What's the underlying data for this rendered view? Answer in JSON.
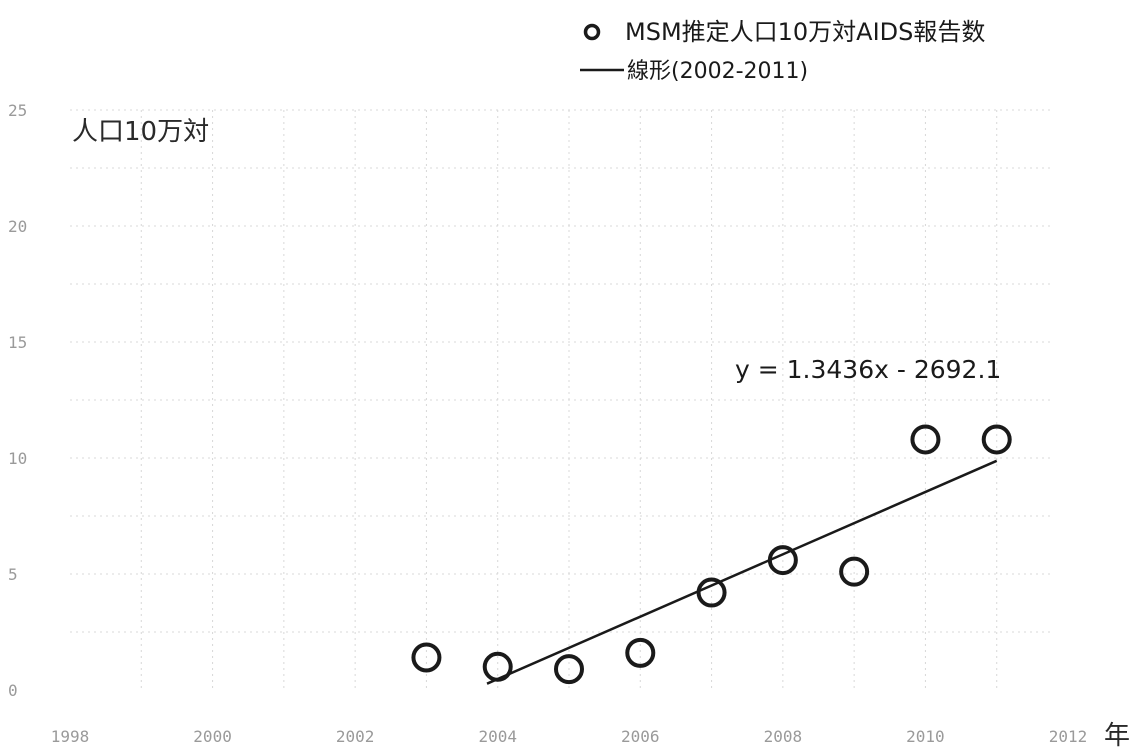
{
  "chart_data": {
    "type": "scatter",
    "ylabel": "人口10万対",
    "xunit": "年",
    "xlim": [
      1998,
      2012
    ],
    "ylim": [
      0,
      25
    ],
    "xticks": [
      "1998",
      "2000",
      "2002",
      "2004",
      "2006",
      "2008",
      "2010",
      "2012"
    ],
    "yticks": [
      "0",
      "5",
      "10",
      "15",
      "20",
      "25"
    ],
    "grid": true,
    "legend_position": "top-right",
    "series": [
      {
        "name": "MSM推定人口10万対AIDS報告数",
        "marker": "open-circle",
        "points": [
          {
            "x": 2003,
            "y": 1.4
          },
          {
            "x": 2004,
            "y": 1.0
          },
          {
            "x": 2005,
            "y": 0.9
          },
          {
            "x": 2006,
            "y": 1.6
          },
          {
            "x": 2007,
            "y": 4.2
          },
          {
            "x": 2008,
            "y": 5.6
          },
          {
            "x": 2009,
            "y": 5.1
          },
          {
            "x": 2010,
            "y": 10.8
          },
          {
            "x": 2011,
            "y": 10.8
          }
        ]
      }
    ],
    "trendline": {
      "name": "線形(2002-2011)",
      "slope": 1.3436,
      "intercept": -2692.1,
      "x_range": [
        2003.85,
        2011
      ],
      "equation": "y = 1.3436x - 2692.1"
    }
  }
}
